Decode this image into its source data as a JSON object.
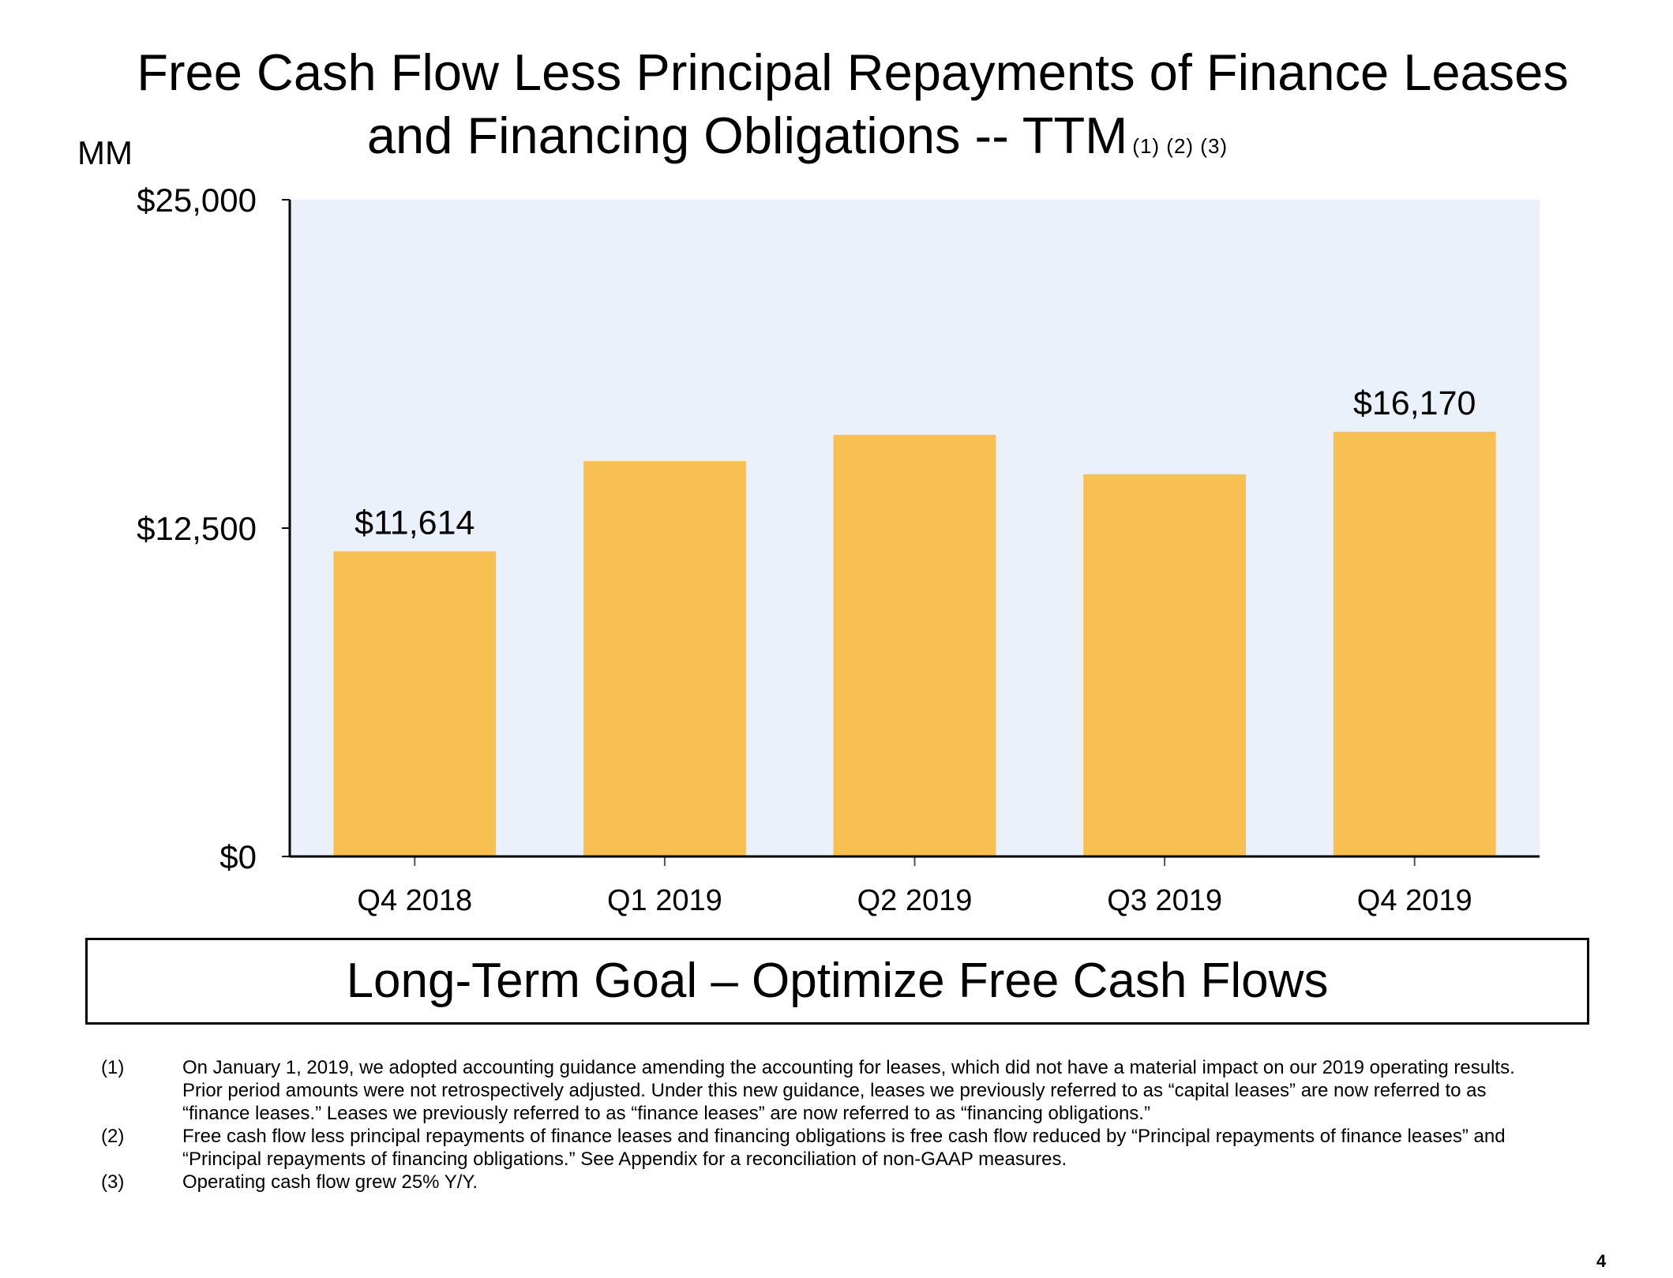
{
  "title": {
    "line1": "Free Cash Flow Less Principal Repayments of Finance Leases",
    "line2": "and Financing Obligations -- TTM",
    "footnote_refs": "(1) (2) (3)"
  },
  "unit_label": "MM",
  "chart_data": {
    "type": "bar",
    "title": "Free Cash Flow Less Principal Repayments of Finance Leases and Financing Obligations -- TTM",
    "ylabel": "MM",
    "categories": [
      "Q4 2018",
      "Q1 2019",
      "Q2 2019",
      "Q3 2019",
      "Q4 2019"
    ],
    "values": [
      11614,
      15050,
      16050,
      14550,
      16170
    ],
    "data_labels": [
      "$11,614",
      "",
      "",
      "",
      "$16,170"
    ],
    "ylim": [
      0,
      25000
    ],
    "yticks": [
      0,
      12500,
      25000
    ],
    "ytick_labels": [
      "$0",
      "$12,500",
      "$25,000"
    ],
    "bar_color": "#F8C052",
    "plot_background": "#EAF1FB",
    "grid": false
  },
  "goal_box": {
    "text": "Long-Term Goal – Optimize Free Cash Flows"
  },
  "footnotes": [
    {
      "num": "(1)",
      "text": "On January 1, 2019, we adopted accounting guidance amending the accounting for leases, which did not have a material impact on our 2019 operating results. Prior period amounts were not retrospectively adjusted. Under this new guidance, leases we previously referred to as “capital leases” are now referred to as “finance leases.” Leases we previously referred to as “finance leases” are now referred to as “financing obligations.”"
    },
    {
      "num": "(2)",
      "text": "Free cash flow less principal repayments of finance leases and financing obligations is free cash flow reduced by “Principal repayments of finance leases” and “Principal repayments of financing obligations.” See Appendix for a reconciliation of non-GAAP measures."
    },
    {
      "num": "(3)",
      "text": "Operating cash flow grew 25% Y/Y."
    }
  ],
  "page_number": "4"
}
